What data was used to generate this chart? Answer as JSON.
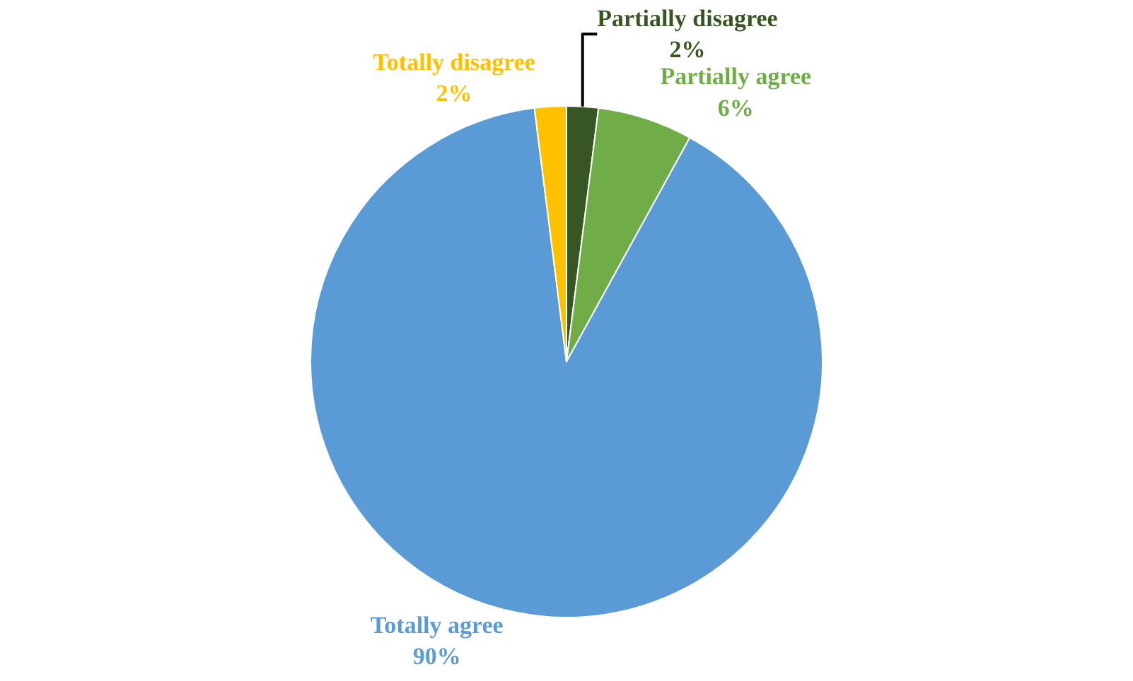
{
  "chart_data": {
    "type": "pie",
    "categories": [
      "Partially disagree",
      "Partially agree",
      "Totally agree",
      "Totally disagree"
    ],
    "values": [
      2,
      6,
      90,
      2
    ],
    "value_labels": [
      "2%",
      "6%",
      "90%",
      "2%"
    ],
    "colors": [
      "#375623",
      "#70ad47",
      "#5b9bd5",
      "#ffc000"
    ],
    "legend": false
  }
}
